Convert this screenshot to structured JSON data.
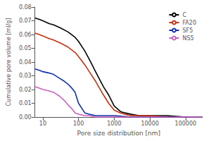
{
  "chart_data": {
    "type": "line",
    "xlabel": "Pore size distribution [nm]",
    "ylabel": "Cumulative pore volume [ml/g]",
    "log": "x",
    "grid": false,
    "legend": "upper right",
    "xlim": [
      6,
      300000
    ],
    "xticks": [
      10,
      100,
      1000,
      10000,
      100000
    ],
    "ylim": [
      0,
      0.08
    ],
    "yticks": [
      {
        "value": 0.0,
        "label": "0.00"
      },
      {
        "value": 0.01,
        "label": "0.01"
      },
      {
        "value": 0.02,
        "label": "0.02"
      },
      {
        "value": 0.03,
        "label": "0.03"
      },
      {
        "value": 0.04,
        "label": "0.04"
      },
      {
        "value": 0.05,
        "label": "0.05"
      },
      {
        "value": 0.06,
        "label": "0.06"
      },
      {
        "value": 0.07,
        "label": "0.07"
      },
      {
        "value": 0.08,
        "label": "0.08"
      }
    ],
    "series": [
      {
        "name": "C",
        "color": "#000000",
        "x": [
          6,
          8,
          10,
          15,
          20,
          30,
          50,
          80,
          100,
          150,
          200,
          300,
          500,
          700,
          1000,
          1500,
          2000,
          3000,
          5000,
          10000,
          30000,
          100000,
          300000
        ],
        "values": [
          0.072,
          0.071,
          0.07,
          0.068,
          0.067,
          0.065,
          0.062,
          0.058,
          0.055,
          0.048,
          0.042,
          0.033,
          0.022,
          0.016,
          0.008,
          0.004,
          0.003,
          0.002,
          0.001,
          0.001,
          0.001,
          0.0,
          0.0
        ]
      },
      {
        "name": "FA20",
        "color": "#c83010",
        "x": [
          6,
          8,
          10,
          15,
          20,
          30,
          50,
          80,
          100,
          150,
          200,
          300,
          500,
          700,
          1000,
          1500,
          2000,
          3000,
          5000,
          10000,
          30000,
          100000,
          300000
        ],
        "values": [
          0.061,
          0.06,
          0.059,
          0.057,
          0.056,
          0.054,
          0.051,
          0.047,
          0.044,
          0.038,
          0.033,
          0.026,
          0.016,
          0.01,
          0.005,
          0.003,
          0.002,
          0.001,
          0.001,
          0.001,
          0.0,
          0.0,
          0.0
        ]
      },
      {
        "name": "SF5",
        "color": "#1030b0",
        "x": [
          6,
          8,
          10,
          15,
          20,
          30,
          40,
          50,
          60,
          70,
          80,
          100,
          150,
          200,
          300,
          500,
          1000,
          3000,
          10000,
          100000,
          300000
        ],
        "values": [
          0.035,
          0.034,
          0.033,
          0.032,
          0.031,
          0.028,
          0.026,
          0.024,
          0.022,
          0.02,
          0.018,
          0.01,
          0.003,
          0.002,
          0.001,
          0.001,
          0.001,
          0.0,
          0.0,
          0.0,
          0.0
        ]
      },
      {
        "name": "NS5",
        "color": "#cc60c0",
        "x": [
          6,
          8,
          10,
          15,
          20,
          30,
          40,
          50,
          60,
          70,
          80,
          100,
          150,
          200,
          300,
          500,
          1000,
          3000,
          10000,
          100000,
          300000
        ],
        "values": [
          0.022,
          0.021,
          0.02,
          0.019,
          0.018,
          0.015,
          0.012,
          0.009,
          0.007,
          0.005,
          0.003,
          0.002,
          0.001,
          0.001,
          0.0,
          0.0,
          0.0,
          0.0,
          0.0,
          0.0,
          0.0
        ]
      }
    ]
  }
}
